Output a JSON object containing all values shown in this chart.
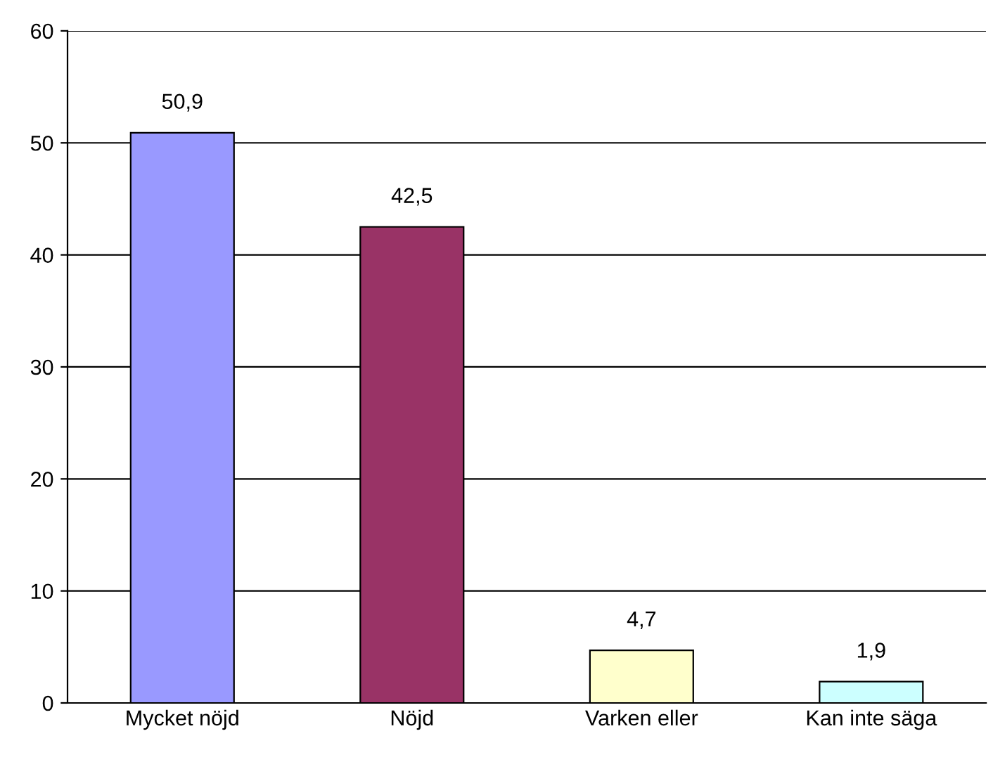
{
  "chart_data": {
    "type": "bar",
    "categories": [
      "Mycket nöjd",
      "Nöjd",
      "Varken eller",
      "Kan inte säga"
    ],
    "values": [
      50.9,
      42.5,
      4.7,
      1.9
    ],
    "value_labels": [
      "50,9",
      "42,5",
      "4,7",
      "1,9"
    ],
    "colors": [
      "#9999ff",
      "#993366",
      "#ffffcc",
      "#ccffff"
    ],
    "ylim": [
      0,
      60
    ],
    "yticks": [
      0,
      10,
      20,
      30,
      40,
      50,
      60
    ],
    "grid": "y",
    "legend": false
  }
}
